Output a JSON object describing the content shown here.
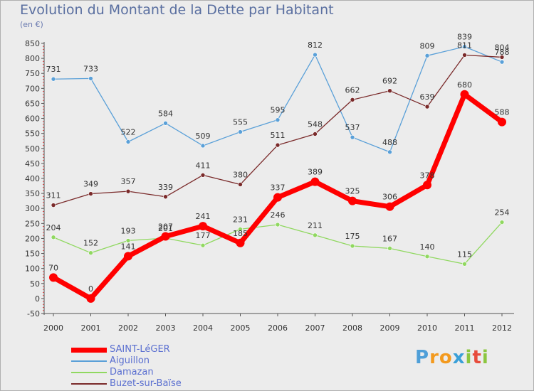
{
  "header": {
    "title": "Evolution du Montant de la Dette par Habitant",
    "subtitle": "(en €)"
  },
  "brand": {
    "logo_text": "Proxiti"
  },
  "chart_data": {
    "type": "line",
    "title": "Evolution du Montant de la Dette par Habitant",
    "subtitle": "(en €)",
    "xlabel": "",
    "ylabel": "",
    "x": [
      2000,
      2001,
      2002,
      2003,
      2004,
      2005,
      2006,
      2007,
      2008,
      2009,
      2010,
      2011,
      2012
    ],
    "ylim": [
      -50,
      850
    ],
    "yticks": [
      -50,
      0,
      50,
      100,
      150,
      200,
      250,
      300,
      350,
      400,
      450,
      500,
      550,
      600,
      650,
      700,
      750,
      800,
      850
    ],
    "grid": false,
    "legend_position": "bottom-left",
    "series": [
      {
        "name": "SAINT-LéGER",
        "color": "#ff0000",
        "values": [
          70,
          0,
          141,
          207,
          241,
          185,
          337,
          389,
          325,
          306,
          378,
          680,
          588
        ]
      },
      {
        "name": "Aiguillon",
        "color": "#5aa0d8",
        "values": [
          731,
          733,
          522,
          584,
          509,
          555,
          595,
          812,
          537,
          488,
          809,
          839,
          788
        ]
      },
      {
        "name": "Damazan",
        "color": "#90d860",
        "values": [
          204,
          152,
          193,
          201,
          177,
          231,
          246,
          211,
          175,
          167,
          140,
          115,
          254
        ]
      },
      {
        "name": "Buzet-sur-Baïse",
        "color": "#7a2a2a",
        "values": [
          311,
          349,
          357,
          339,
          411,
          380,
          511,
          548,
          662,
          692,
          639,
          811,
          804
        ]
      }
    ]
  }
}
